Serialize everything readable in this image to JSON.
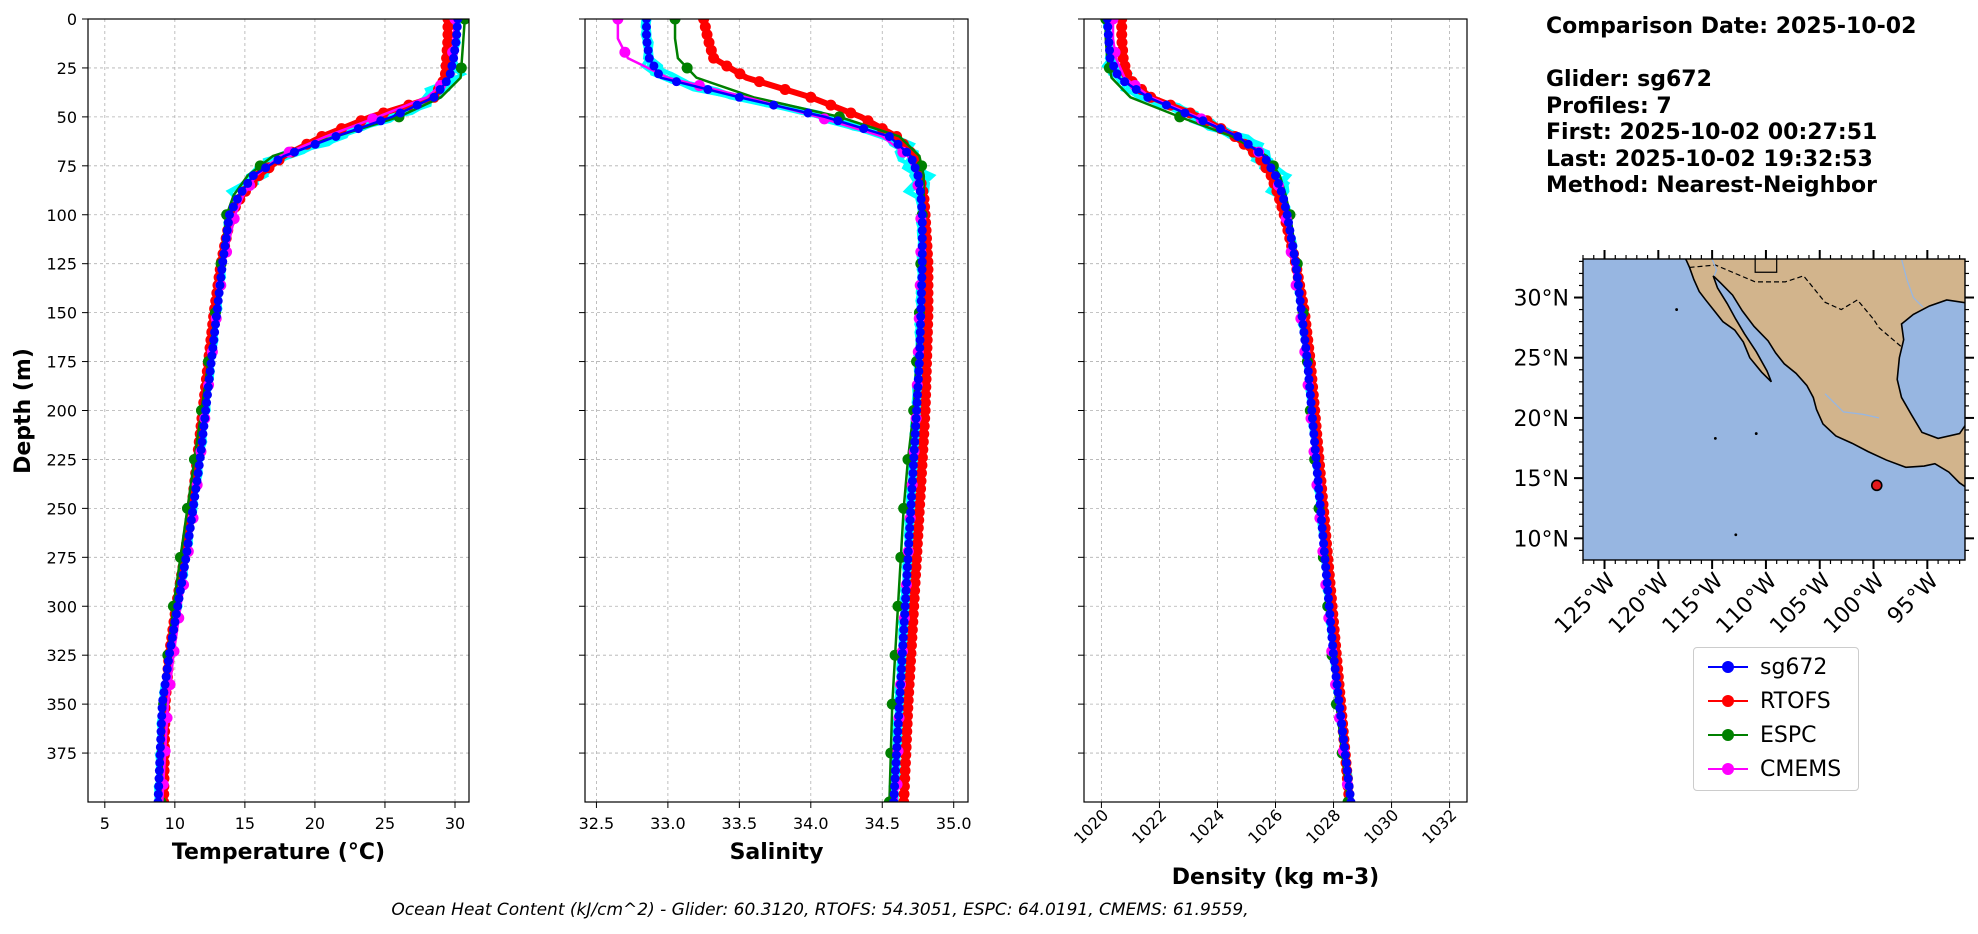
{
  "info": {
    "comparison_date": "Comparison Date: 2025-10-02",
    "glider": "Glider: sg672",
    "profiles": "Profiles: 7",
    "first": "First: 2025-10-02 00:27:51",
    "last": "Last: 2025-10-02 19:32:53",
    "method": "Method: Nearest-Neighbor"
  },
  "footer": "Ocean Heat Content (kJ/cm^2) - Glider: 60.3120,  RTOFS: 54.3051,  ESPC: 64.0191,  CMEMS: 61.9559,",
  "legend": [
    {
      "label": "sg672",
      "color": "#0000ff"
    },
    {
      "label": "RTOFS",
      "color": "#ff0000"
    },
    {
      "label": "ESPC",
      "color": "#008000"
    },
    {
      "label": "CMEMS",
      "color": "#ff00ff"
    }
  ],
  "colors": {
    "glider_profiles": "#00ffff",
    "ocean": "#97b6e1",
    "land": "#d2b48c"
  },
  "chart_data": [
    {
      "type": "line",
      "xlabel": "Temperature (°C)",
      "ylabel": "Depth (m)",
      "xlim": [
        3.8,
        31
      ],
      "ylim": [
        400,
        0
      ],
      "xticks": [
        5,
        10,
        15,
        20,
        25,
        30
      ],
      "yticks": [
        0,
        25,
        50,
        75,
        100,
        125,
        150,
        175,
        200,
        225,
        250,
        275,
        300,
        325,
        350,
        375
      ],
      "grid": true,
      "series": [
        {
          "name": "sg672",
          "x": [
            30.2,
            30.1,
            29.9,
            29.6,
            28.5,
            25.5,
            21.5,
            17.8,
            15.6,
            14.6,
            13.9,
            13.4,
            13.0,
            12.6,
            12.2,
            11.8,
            11.3,
            10.8,
            10.2,
            9.6,
            9.1,
            8.8
          ],
          "y": [
            0,
            10,
            20,
            30,
            40,
            50,
            60,
            70,
            80,
            90,
            100,
            125,
            150,
            175,
            200,
            225,
            250,
            275,
            300,
            325,
            350,
            400
          ]
        },
        {
          "name": "RTOFS",
          "x": [
            29.5,
            29.5,
            29.4,
            29.3,
            28.5,
            24.0,
            20.5,
            17.8,
            16.0,
            14.8,
            14.0,
            13.3,
            12.8,
            12.4,
            12.0,
            11.6,
            11.2,
            10.7,
            10.1,
            9.6,
            9.3,
            9.2
          ],
          "y": [
            0,
            10,
            20,
            30,
            40,
            50,
            60,
            70,
            80,
            90,
            100,
            125,
            150,
            175,
            200,
            225,
            250,
            275,
            300,
            325,
            350,
            400
          ]
        },
        {
          "name": "ESPC",
          "x": [
            30.7,
            30.6,
            30.5,
            30.4,
            29.0,
            26.0,
            21.5,
            17.0,
            15.2,
            14.2,
            13.7,
            13.3,
            12.9,
            12.4,
            11.9,
            11.4,
            10.9,
            10.4,
            9.9,
            9.5,
            9.2,
            9.0
          ],
          "y": [
            0,
            10,
            20,
            30,
            40,
            50,
            60,
            70,
            80,
            90,
            100,
            125,
            150,
            175,
            200,
            225,
            250,
            275,
            300,
            325,
            350,
            400
          ]
        },
        {
          "name": "CMEMS",
          "x": [
            30.0,
            29.9,
            29.8,
            29.6,
            28.0,
            24.5,
            20.8,
            17.5,
            15.8,
            14.9,
            14.3,
            13.5,
            13.0,
            12.6,
            12.2,
            11.8,
            11.4,
            10.9,
            10.4,
            9.9,
            9.5,
            9.1
          ],
          "y": [
            0,
            10,
            20,
            30,
            40,
            50,
            60,
            70,
            80,
            90,
            100,
            125,
            150,
            175,
            200,
            225,
            250,
            275,
            300,
            325,
            350,
            400
          ]
        }
      ]
    },
    {
      "type": "line",
      "xlabel": "Salinity",
      "ylabel": "",
      "xlim": [
        32.42,
        35.1
      ],
      "ylim": [
        400,
        0
      ],
      "xticks": [
        32.5,
        33.0,
        33.5,
        34.0,
        34.5,
        35.0
      ],
      "yticks": [
        0,
        25,
        50,
        75,
        100,
        125,
        150,
        175,
        200,
        225,
        250,
        275,
        300,
        325,
        350,
        375
      ],
      "grid": true,
      "series": [
        {
          "name": "sg672",
          "x": [
            32.85,
            32.85,
            32.87,
            32.95,
            33.5,
            34.1,
            34.55,
            34.7,
            34.75,
            34.77,
            34.78,
            34.78,
            34.77,
            34.76,
            34.74,
            34.72,
            34.7,
            34.68,
            34.66,
            34.64,
            34.62,
            34.58
          ],
          "y": [
            0,
            10,
            20,
            30,
            40,
            50,
            60,
            70,
            80,
            90,
            100,
            125,
            150,
            175,
            200,
            225,
            250,
            275,
            300,
            325,
            350,
            400
          ]
        },
        {
          "name": "RTOFS",
          "x": [
            33.25,
            33.28,
            33.32,
            33.55,
            34.0,
            34.35,
            34.6,
            34.72,
            34.76,
            34.79,
            34.8,
            34.82,
            34.82,
            34.81,
            34.8,
            34.78,
            34.76,
            34.74,
            34.72,
            34.7,
            34.68,
            34.65
          ],
          "y": [
            0,
            10,
            20,
            30,
            40,
            50,
            60,
            70,
            80,
            90,
            100,
            125,
            150,
            175,
            200,
            225,
            250,
            275,
            300,
            325,
            350,
            400
          ]
        },
        {
          "name": "ESPC",
          "x": [
            33.05,
            33.05,
            33.07,
            33.2,
            33.6,
            34.2,
            34.62,
            34.76,
            34.79,
            34.79,
            34.78,
            34.77,
            34.76,
            34.74,
            34.72,
            34.68,
            34.65,
            34.63,
            34.61,
            34.59,
            34.57,
            34.55
          ],
          "y": [
            0,
            10,
            20,
            30,
            40,
            50,
            60,
            70,
            80,
            90,
            100,
            125,
            150,
            175,
            200,
            225,
            250,
            275,
            300,
            325,
            350,
            400
          ]
        },
        {
          "name": "CMEMS",
          "x": [
            32.65,
            32.65,
            32.72,
            33.0,
            33.55,
            34.05,
            34.5,
            34.68,
            34.74,
            34.76,
            34.77,
            34.77,
            34.76,
            34.75,
            34.74,
            34.72,
            34.7,
            34.68,
            34.66,
            34.64,
            34.62,
            34.6
          ],
          "y": [
            0,
            10,
            20,
            30,
            40,
            50,
            60,
            70,
            80,
            90,
            100,
            125,
            150,
            175,
            200,
            225,
            250,
            275,
            300,
            325,
            350,
            400
          ]
        }
      ]
    },
    {
      "type": "line",
      "xlabel": "Density (kg m-3)",
      "ylabel": "",
      "xlim": [
        1019.4,
        1032.6
      ],
      "ylim": [
        400,
        0
      ],
      "xticks": [
        1020,
        1022,
        1024,
        1026,
        1028,
        1030,
        1032
      ],
      "yticks": [
        0,
        25,
        50,
        75,
        100,
        125,
        150,
        175,
        200,
        225,
        250,
        275,
        300,
        325,
        350,
        375
      ],
      "grid": true,
      "series": [
        {
          "name": "sg672",
          "x": [
            1020.2,
            1020.25,
            1020.3,
            1020.6,
            1021.6,
            1023.2,
            1024.7,
            1025.6,
            1026.0,
            1026.25,
            1026.4,
            1026.7,
            1026.9,
            1027.1,
            1027.25,
            1027.4,
            1027.55,
            1027.7,
            1027.85,
            1028.0,
            1028.2,
            1028.6
          ],
          "y": [
            0,
            10,
            20,
            30,
            40,
            50,
            60,
            70,
            80,
            90,
            100,
            125,
            150,
            175,
            200,
            225,
            250,
            275,
            300,
            325,
            350,
            400
          ]
        },
        {
          "name": "RTOFS",
          "x": [
            1020.7,
            1020.7,
            1020.75,
            1020.9,
            1021.7,
            1023.4,
            1024.6,
            1025.4,
            1025.85,
            1026.1,
            1026.3,
            1026.7,
            1027.0,
            1027.2,
            1027.35,
            1027.5,
            1027.65,
            1027.8,
            1027.95,
            1028.1,
            1028.25,
            1028.55
          ],
          "y": [
            0,
            10,
            20,
            30,
            40,
            50,
            60,
            70,
            80,
            90,
            100,
            125,
            150,
            175,
            200,
            225,
            250,
            275,
            300,
            325,
            350,
            400
          ]
        },
        {
          "name": "ESPC",
          "x": [
            1020.15,
            1020.15,
            1020.2,
            1020.35,
            1021.0,
            1022.7,
            1024.5,
            1025.7,
            1026.15,
            1026.35,
            1026.5,
            1026.75,
            1026.95,
            1027.1,
            1027.2,
            1027.35,
            1027.5,
            1027.65,
            1027.8,
            1027.95,
            1028.1,
            1028.5
          ],
          "y": [
            0,
            10,
            20,
            30,
            40,
            50,
            60,
            70,
            80,
            90,
            100,
            125,
            150,
            175,
            200,
            225,
            250,
            275,
            300,
            325,
            350,
            400
          ]
        },
        {
          "name": "CMEMS",
          "x": [
            1020.4,
            1020.4,
            1020.5,
            1020.8,
            1021.7,
            1023.3,
            1024.7,
            1025.6,
            1026.0,
            1026.2,
            1026.35,
            1026.6,
            1026.85,
            1027.05,
            1027.2,
            1027.35,
            1027.5,
            1027.65,
            1027.8,
            1027.95,
            1028.15,
            1028.55
          ],
          "y": [
            0,
            10,
            20,
            30,
            40,
            50,
            60,
            70,
            80,
            90,
            100,
            125,
            150,
            175,
            200,
            225,
            250,
            275,
            300,
            325,
            350,
            400
          ]
        }
      ]
    },
    {
      "type": "map",
      "lon_range": [
        -127,
        -91.5
      ],
      "lat_range": [
        8.2,
        33.2
      ],
      "lat_ticks": [
        "10°N",
        "15°N",
        "20°N",
        "25°N",
        "30°N"
      ],
      "lon_ticks": [
        "125°W",
        "120°W",
        "115°W",
        "110°W",
        "105°W",
        "100°W",
        "95°W"
      ],
      "glider_position": {
        "lon": -99.7,
        "lat": 14.4
      }
    }
  ]
}
